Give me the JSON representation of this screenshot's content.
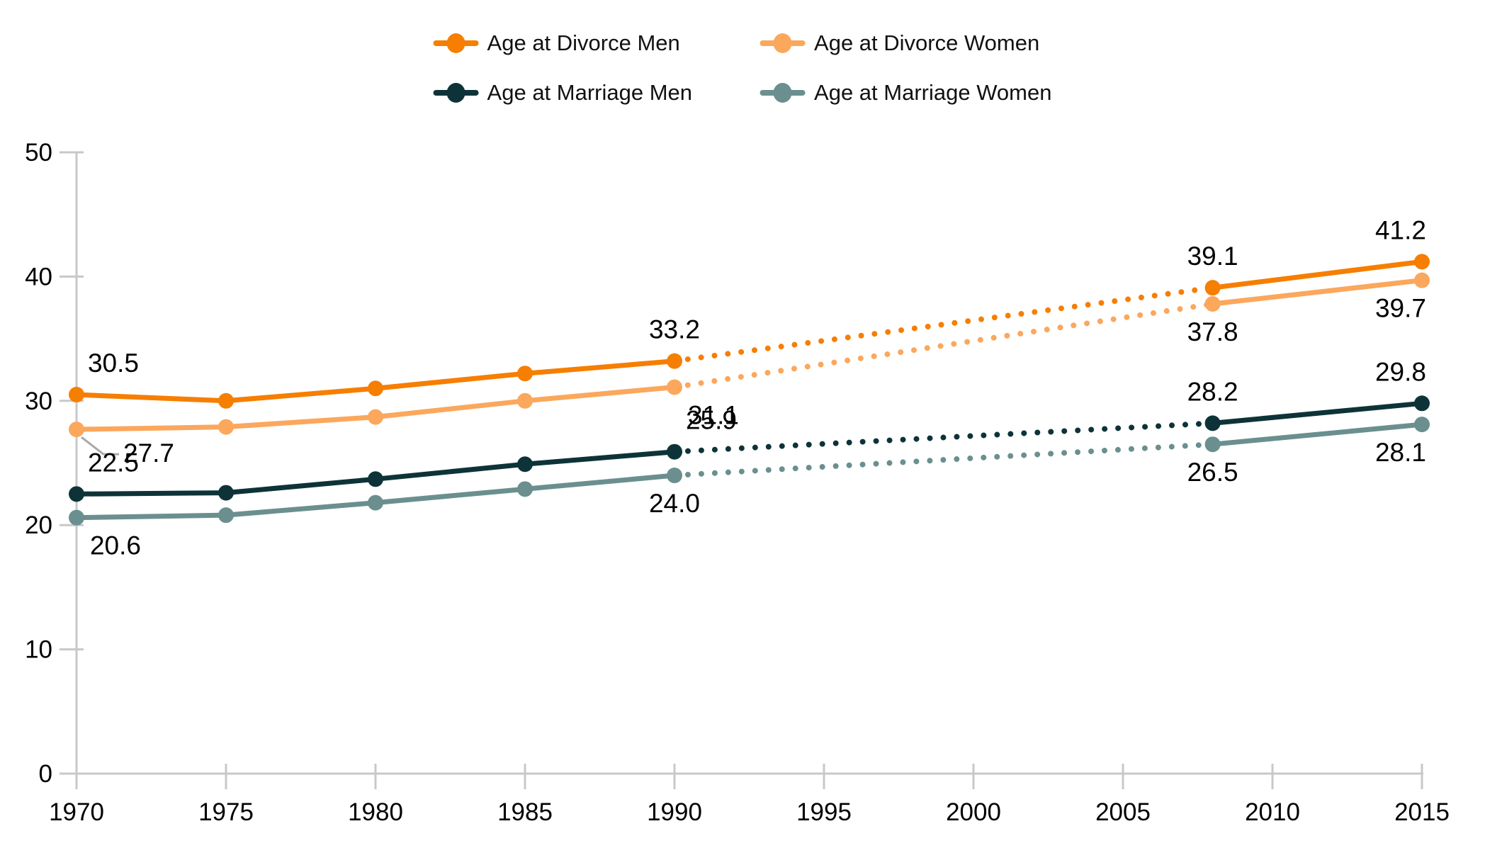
{
  "chart_data": {
    "type": "line",
    "title": "",
    "xlabel": "",
    "ylabel": "",
    "xlim": [
      1970,
      2015
    ],
    "ylim": [
      0,
      50
    ],
    "x_ticks": [
      1970,
      1975,
      1980,
      1985,
      1990,
      1995,
      2000,
      2005,
      2010,
      2015
    ],
    "y_ticks": [
      0,
      10,
      20,
      30,
      40,
      50
    ],
    "grid": false,
    "legend_position": "top-center",
    "axis_color": "#c8c8c8",
    "leader_color": "#a9a9a9",
    "label_color": "#000000",
    "series": [
      {
        "name": "Age at Divorce Men",
        "color": "#f67e00",
        "points": [
          {
            "x": 1970,
            "y": 30.5,
            "label": "30.5",
            "pos": "above-right"
          },
          {
            "x": 1975,
            "y": 30.0
          },
          {
            "x": 1980,
            "y": 31.0
          },
          {
            "x": 1985,
            "y": 32.2
          },
          {
            "x": 1990,
            "y": 33.2,
            "label": "33.2",
            "pos": "above"
          },
          {
            "x": 2008,
            "y": 39.1,
            "label": "39.1",
            "pos": "above"
          },
          {
            "x": 2015,
            "y": 41.2,
            "label": "41.2",
            "pos": "above-left"
          }
        ],
        "segments": [
          {
            "from": 1970,
            "to": 1990,
            "style": "solid"
          },
          {
            "from": 1990,
            "to": 2008,
            "style": "dotted"
          },
          {
            "from": 2008,
            "to": 2015,
            "style": "solid"
          }
        ]
      },
      {
        "name": "Age at Divorce Women",
        "color": "#fba75c",
        "points": [
          {
            "x": 1970,
            "y": 27.7,
            "label": "27.7",
            "pos": "leader"
          },
          {
            "x": 1975,
            "y": 27.9
          },
          {
            "x": 1980,
            "y": 28.7
          },
          {
            "x": 1985,
            "y": 30.0
          },
          {
            "x": 1990,
            "y": 31.1,
            "label": "31.1",
            "pos": "below-right"
          },
          {
            "x": 2008,
            "y": 37.8,
            "label": "37.8",
            "pos": "below"
          },
          {
            "x": 2015,
            "y": 39.7,
            "label": "39.7",
            "pos": "below-left"
          }
        ],
        "segments": [
          {
            "from": 1970,
            "to": 1990,
            "style": "solid"
          },
          {
            "from": 1990,
            "to": 2008,
            "style": "dotted"
          },
          {
            "from": 2008,
            "to": 2015,
            "style": "solid"
          }
        ]
      },
      {
        "name": "Age at Marriage Men",
        "color": "#0d3338",
        "points": [
          {
            "x": 1970,
            "y": 22.5,
            "label": "22.5",
            "pos": "above-right"
          },
          {
            "x": 1975,
            "y": 22.6
          },
          {
            "x": 1980,
            "y": 23.7
          },
          {
            "x": 1985,
            "y": 24.9
          },
          {
            "x": 1990,
            "y": 25.9,
            "label": "25.9",
            "pos": "above-right"
          },
          {
            "x": 2008,
            "y": 28.2,
            "label": "28.2",
            "pos": "above"
          },
          {
            "x": 2015,
            "y": 29.8,
            "label": "29.8",
            "pos": "above-left"
          }
        ],
        "segments": [
          {
            "from": 1970,
            "to": 1990,
            "style": "solid"
          },
          {
            "from": 1990,
            "to": 2008,
            "style": "dotted"
          },
          {
            "from": 2008,
            "to": 2015,
            "style": "solid"
          }
        ]
      },
      {
        "name": "Age at Marriage Women",
        "color": "#6b8f8f",
        "points": [
          {
            "x": 1970,
            "y": 20.6,
            "label": "20.6",
            "pos": "below-right"
          },
          {
            "x": 1975,
            "y": 20.8
          },
          {
            "x": 1980,
            "y": 21.8
          },
          {
            "x": 1985,
            "y": 22.9
          },
          {
            "x": 1990,
            "y": 24.0,
            "label": "24.0",
            "pos": "below"
          },
          {
            "x": 2008,
            "y": 26.5,
            "label": "26.5",
            "pos": "below"
          },
          {
            "x": 2015,
            "y": 28.1,
            "label": "28.1",
            "pos": "below-left"
          }
        ],
        "segments": [
          {
            "from": 1970,
            "to": 1990,
            "style": "solid"
          },
          {
            "from": 1990,
            "to": 2008,
            "style": "dotted"
          },
          {
            "from": 2008,
            "to": 2015,
            "style": "solid"
          }
        ]
      }
    ]
  },
  "legend": {
    "items": [
      {
        "label": "Age at Divorce Men",
        "color": "#f67e00"
      },
      {
        "label": "Age at Divorce Women",
        "color": "#fba75c"
      },
      {
        "label": "Age at Marriage Men",
        "color": "#0d3338"
      },
      {
        "label": "Age at Marriage Women",
        "color": "#6b8f8f"
      }
    ]
  }
}
